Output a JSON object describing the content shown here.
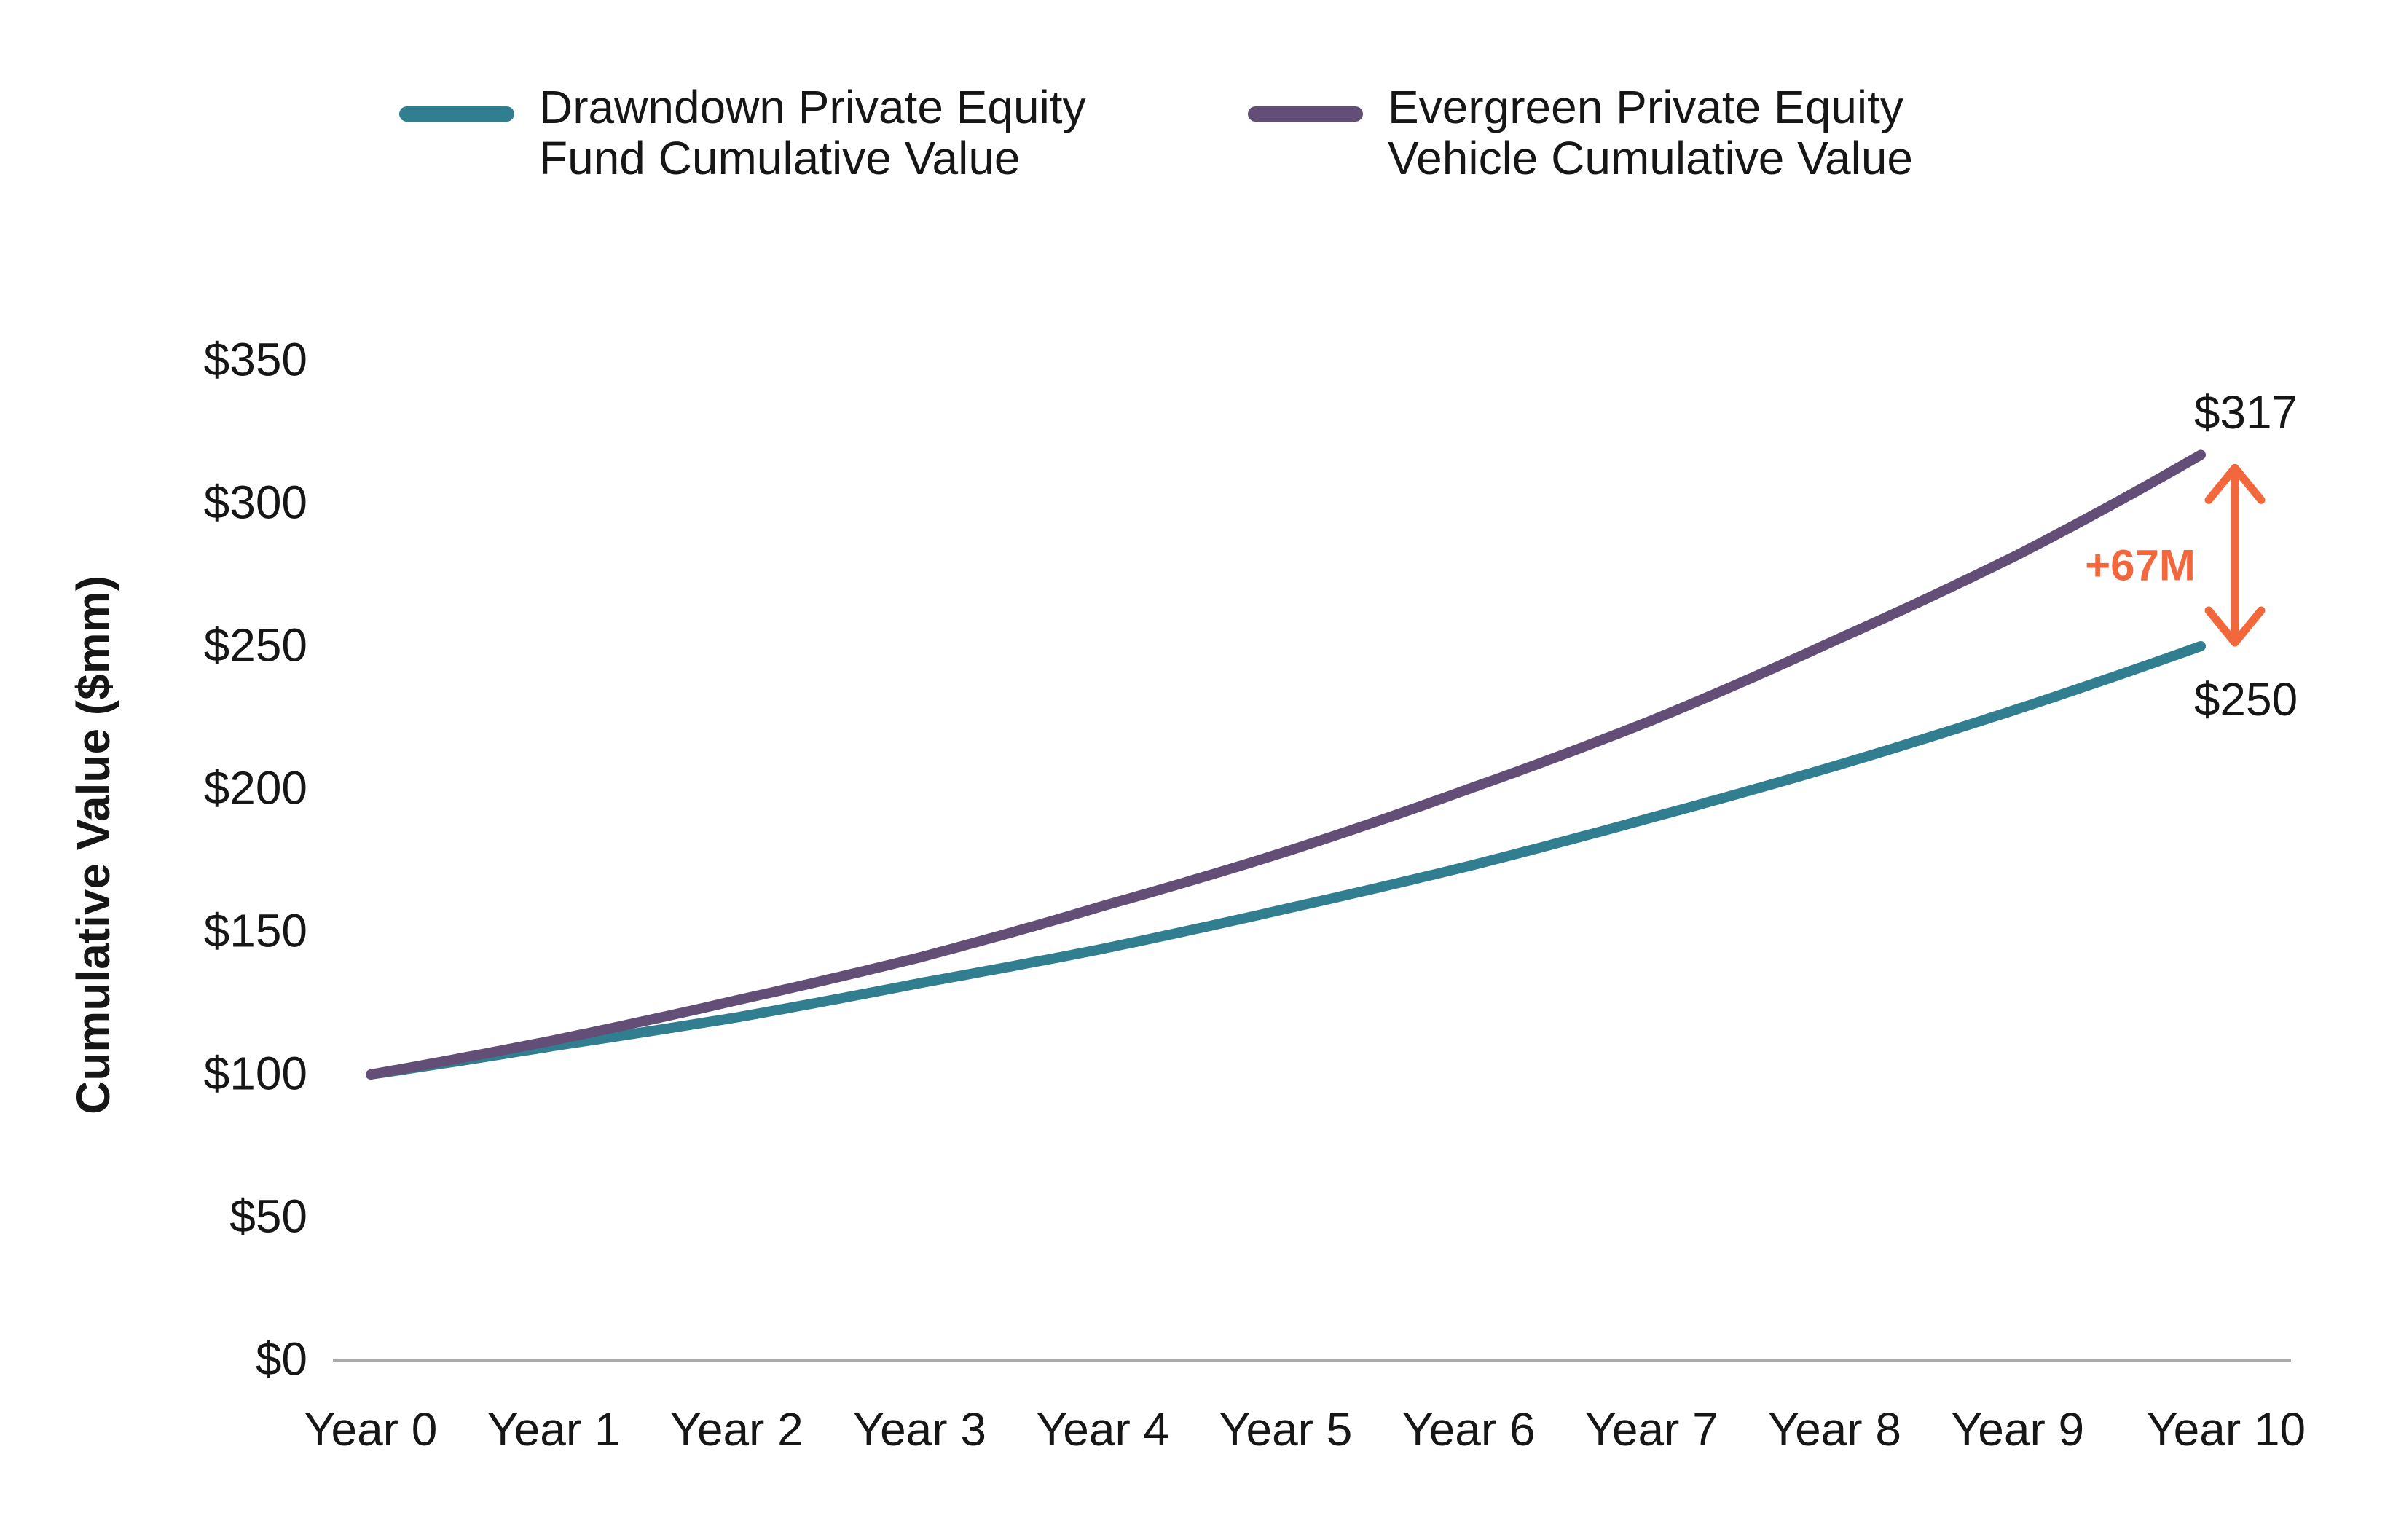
{
  "chart_data": {
    "type": "line",
    "title": "",
    "xlabel": "",
    "ylabel": "Cumulative Value ($mm)",
    "categories": [
      "Year 0",
      "Year 1",
      "Year 2",
      "Year 3",
      "Year 4",
      "Year 5",
      "Year 6",
      "Year 7",
      "Year 8",
      "Year 9",
      "Year 10"
    ],
    "ylim": [
      0,
      350
    ],
    "y_tick_interval": 50,
    "grid": false,
    "legend_position": "top",
    "y_ticks": [
      {
        "value": 0,
        "label": "$0"
      },
      {
        "value": 50,
        "label": "$50"
      },
      {
        "value": 100,
        "label": "$100"
      },
      {
        "value": 150,
        "label": "$150"
      },
      {
        "value": 200,
        "label": "$200"
      },
      {
        "value": 250,
        "label": "$250"
      },
      {
        "value": 300,
        "label": "$300"
      },
      {
        "value": 350,
        "label": "$350"
      }
    ],
    "series": [
      {
        "name": "Drawndown Private Equity Fund Cumulative Value",
        "color": "#327E91",
        "values": [
          100,
          110,
          120,
          132,
          144,
          158,
          173,
          190,
          208,
          228,
          250
        ],
        "end_value_label": "$250"
      },
      {
        "name": "Evergreen Private Equity Vehicle Cumulative Value",
        "color": "#634E77",
        "values": [
          100,
          112,
          126,
          141,
          159,
          178,
          200,
          224,
          252,
          282,
          317
        ],
        "end_value_label": "$317"
      }
    ],
    "annotation": {
      "label": "+67M",
      "color": "#F2683C",
      "from_value": 250,
      "to_value": 317
    }
  },
  "legend": {
    "items": [
      {
        "line1": "Drawndown Private Equity",
        "line2": "Fund Cumulative Value",
        "color": "#327E91"
      },
      {
        "line1": "Evergreen Private Equity",
        "line2": "Vehicle Cumulative Value",
        "color": "#634E77"
      }
    ]
  },
  "annotations": {
    "evergreen_end": "$317",
    "drawdown_end": "$250",
    "delta": "+67M"
  },
  "colors": {
    "drawdown": "#327E91",
    "evergreen": "#634E77",
    "delta": "#F2683C",
    "axis_line": "#A9A9A9",
    "text": "#161616"
  }
}
